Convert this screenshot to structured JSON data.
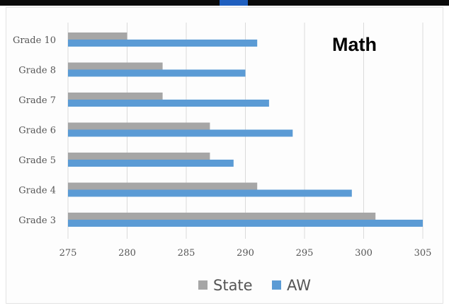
{
  "chart_data": {
    "type": "bar",
    "orientation": "horizontal",
    "title": "Math",
    "categories": [
      "Grade 10",
      "Grade 8",
      "Grade 7",
      "Grade 6",
      "Grade 5",
      "Grade 4",
      "Grade 3"
    ],
    "series": [
      {
        "name": "State",
        "color": "#a6a6a6",
        "values": [
          280,
          283,
          283,
          287,
          287,
          291,
          301
        ]
      },
      {
        "name": "AW",
        "color": "#5b9bd5",
        "values": [
          291,
          290,
          292,
          294,
          289,
          299,
          305
        ]
      }
    ],
    "xlim": [
      275,
      305
    ],
    "xticks": [
      275,
      280,
      285,
      290,
      295,
      300,
      305
    ],
    "grid": true,
    "legend": "bottom"
  }
}
